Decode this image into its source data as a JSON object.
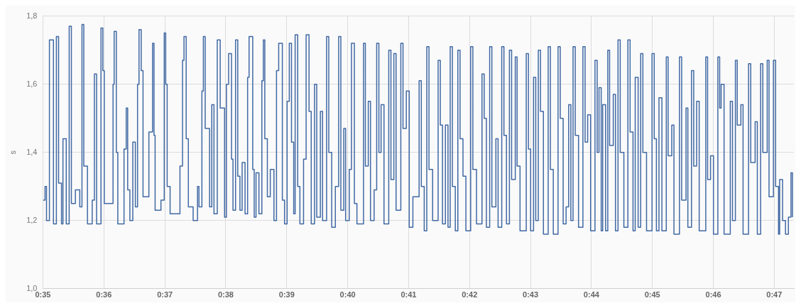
{
  "chart_data": {
    "type": "step",
    "ylabel": "s",
    "color": "#4169a4",
    "xlim": [
      0.58333,
      0.7887
    ],
    "xticks": [
      {
        "value": 0.58333,
        "label": "0:35"
      },
      {
        "value": 0.6,
        "label": "0:36"
      },
      {
        "value": 0.61667,
        "label": "0:37"
      },
      {
        "value": 0.63333,
        "label": "0:38"
      },
      {
        "value": 0.65,
        "label": "0:39"
      },
      {
        "value": 0.66667,
        "label": "0:40"
      },
      {
        "value": 0.68333,
        "label": "0:41"
      },
      {
        "value": 0.7,
        "label": "0:42"
      },
      {
        "value": 0.71667,
        "label": "0:43"
      },
      {
        "value": 0.73333,
        "label": "0:44"
      },
      {
        "value": 0.75,
        "label": "0:45"
      },
      {
        "value": 0.76667,
        "label": "0:46"
      },
      {
        "value": 0.78333,
        "label": "0:47"
      }
    ],
    "ylim": [
      1.0,
      1.8
    ],
    "yticks": [
      {
        "value": 1.0,
        "label": "1,0"
      },
      {
        "value": 1.2,
        "label": "1,2"
      },
      {
        "value": 1.4,
        "label": "1,4"
      },
      {
        "value": 1.6,
        "label": "1,6"
      },
      {
        "value": 1.8,
        "label": "1,8"
      }
    ],
    "grid": true,
    "legend": false,
    "marker": "none",
    "x": [
      0.5834,
      0.5839,
      0.5843,
      0.5851,
      0.5862,
      0.587,
      0.5876,
      0.5884,
      0.5888,
      0.5897,
      0.5905,
      0.5911,
      0.5922,
      0.5934,
      0.594,
      0.5945,
      0.5955,
      0.5968,
      0.5974,
      0.598,
      0.5992,
      0.5997,
      0.6001,
      0.6025,
      0.6028,
      0.6034,
      0.6038,
      0.6055,
      0.6061,
      0.6065,
      0.6071,
      0.6079,
      0.6086,
      0.6092,
      0.6096,
      0.6102,
      0.6107,
      0.6123,
      0.6133,
      0.6137,
      0.614,
      0.6156,
      0.6165,
      0.6169,
      0.6173,
      0.6181,
      0.6208,
      0.6215,
      0.6219,
      0.6225,
      0.6231,
      0.6244,
      0.6256,
      0.626,
      0.6268,
      0.6272,
      0.6277,
      0.6289,
      0.6295,
      0.6301,
      0.631,
      0.6318,
      0.633,
      0.6335,
      0.6341,
      0.6349,
      0.6353,
      0.636,
      0.6366,
      0.6372,
      0.6378,
      0.6386,
      0.6393,
      0.6397,
      0.6407,
      0.6411,
      0.6416,
      0.6424,
      0.6432,
      0.6436,
      0.644,
      0.6447,
      0.6455,
      0.6465,
      0.6472,
      0.6478,
      0.6488,
      0.6494,
      0.6501,
      0.6507,
      0.6513,
      0.6519,
      0.6523,
      0.653,
      0.6536,
      0.6546,
      0.6553,
      0.6561,
      0.6567,
      0.6576,
      0.6582,
      0.6592,
      0.6598,
      0.6609,
      0.6615,
      0.6623,
      0.6633,
      0.6642,
      0.6648,
      0.6656,
      0.6661,
      0.6671,
      0.6677,
      0.6685,
      0.6692,
      0.671,
      0.6715,
      0.6723,
      0.6729,
      0.6739,
      0.6746,
      0.6752,
      0.6758,
      0.6766,
      0.6779,
      0.6785,
      0.6793,
      0.6799,
      0.6812,
      0.6818,
      0.6827,
      0.6835,
      0.6845,
      0.6862,
      0.6868,
      0.6876,
      0.6883,
      0.6889,
      0.6899,
      0.6914,
      0.692,
      0.6926,
      0.6934,
      0.6941,
      0.6947,
      0.6953,
      0.6961,
      0.6968,
      0.6974,
      0.6982,
      0.699,
      0.7003,
      0.7009,
      0.7019,
      0.7034,
      0.704,
      0.7046,
      0.7055,
      0.7061,
      0.7072,
      0.7078,
      0.7088,
      0.7094,
      0.7101,
      0.7109,
      0.7115,
      0.7125,
      0.713,
      0.7138,
      0.7155,
      0.7161,
      0.7167,
      0.7175,
      0.7181,
      0.7188,
      0.7194,
      0.7202,
      0.7215,
      0.7221,
      0.7229,
      0.7242,
      0.7248,
      0.7256,
      0.7264,
      0.7271,
      0.7277,
      0.7283,
      0.7289,
      0.7298,
      0.731,
      0.7316,
      0.7323,
      0.7331,
      0.7343,
      0.7349,
      0.7354,
      0.736,
      0.7364,
      0.7372,
      0.7378,
      0.7383,
      0.7393,
      0.7399,
      0.7406,
      0.7412,
      0.7422,
      0.7433,
      0.7439,
      0.7447,
      0.7453,
      0.7461,
      0.7468,
      0.7474,
      0.7484,
      0.7499,
      0.7505,
      0.7511,
      0.7518,
      0.7526,
      0.7538,
      0.7543,
      0.7553,
      0.7559,
      0.7574,
      0.758,
      0.7592,
      0.7597,
      0.7607,
      0.7613,
      0.7621,
      0.7628,
      0.7646,
      0.7651,
      0.7659,
      0.7667,
      0.7679,
      0.7684,
      0.7688,
      0.7696,
      0.7713,
      0.7719,
      0.7727,
      0.7732,
      0.7742,
      0.7748,
      0.7763,
      0.7769,
      0.7781,
      0.7787,
      0.7796,
      0.7802,
      0.7814,
      0.7819,
      0.7831,
      0.7837,
      0.7845,
      0.7848,
      0.7856,
      0.7864,
      0.7872,
      0.7879,
      0.7883
    ],
    "values": [
      1.26,
      1.3,
      1.2,
      1.73,
      1.19,
      1.74,
      1.31,
      1.19,
      1.44,
      1.19,
      1.77,
      1.25,
      1.29,
      1.24,
      1.775,
      1.36,
      1.19,
      1.26,
      1.63,
      1.19,
      1.765,
      1.64,
      1.25,
      1.6,
      1.755,
      1.4,
      1.19,
      1.41,
      1.53,
      1.29,
      1.2,
      1.43,
      1.24,
      1.6,
      1.76,
      1.64,
      1.27,
      1.46,
      1.72,
      1.45,
      1.23,
      1.26,
      1.75,
      1.6,
      1.3,
      1.22,
      1.36,
      1.67,
      1.74,
      1.44,
      1.24,
      1.2,
      1.3,
      1.24,
      1.58,
      1.74,
      1.47,
      1.24,
      1.54,
      1.22,
      1.73,
      1.53,
      1.21,
      1.6,
      1.69,
      1.38,
      1.23,
      1.73,
      1.33,
      1.23,
      1.37,
      1.22,
      1.62,
      1.74,
      1.35,
      1.21,
      1.34,
      1.22,
      1.61,
      1.73,
      1.44,
      1.27,
      1.35,
      1.2,
      1.64,
      1.72,
      1.26,
      1.19,
      1.55,
      1.72,
      1.43,
      1.22,
      1.745,
      1.3,
      1.19,
      1.38,
      1.745,
      1.52,
      1.19,
      1.6,
      1.21,
      1.52,
      1.2,
      1.74,
      1.4,
      1.18,
      1.3,
      1.74,
      1.23,
      1.47,
      1.2,
      1.35,
      1.72,
      1.25,
      1.19,
      1.72,
      1.36,
      1.55,
      1.2,
      1.29,
      1.72,
      1.4,
      1.54,
      1.19,
      1.7,
      1.32,
      1.69,
      1.23,
      1.72,
      1.47,
      1.58,
      1.18,
      1.27,
      1.61,
      1.3,
      1.17,
      1.71,
      1.35,
      1.2,
      1.67,
      1.48,
      1.19,
      1.48,
      1.18,
      1.71,
      1.3,
      1.17,
      1.7,
      1.44,
      1.33,
      1.17,
      1.71,
      1.35,
      1.19,
      1.63,
      1.5,
      1.18,
      1.71,
      1.24,
      1.44,
      1.18,
      1.71,
      1.45,
      1.19,
      1.7,
      1.32,
      1.68,
      1.36,
      1.17,
      1.69,
      1.41,
      1.17,
      1.62,
      1.2,
      1.7,
      1.52,
      1.16,
      1.71,
      1.35,
      1.16,
      1.71,
      1.5,
      1.19,
      1.24,
      1.54,
      1.2,
      1.71,
      1.45,
      1.18,
      1.71,
      1.43,
      1.51,
      1.17,
      1.67,
      1.4,
      1.59,
      1.17,
      1.54,
      1.17,
      1.7,
      1.42,
      1.57,
      1.17,
      1.73,
      1.4,
      1.18,
      1.73,
      1.46,
      1.17,
      1.62,
      1.18,
      1.69,
      1.4,
      1.17,
      1.69,
      1.44,
      1.17,
      1.56,
      1.17,
      1.68,
      1.39,
      1.48,
      1.16,
      1.68,
      1.26,
      1.53,
      1.18,
      1.64,
      1.36,
      1.55,
      1.17,
      1.68,
      1.32,
      1.39,
      1.16,
      1.68,
      1.53,
      1.6,
      1.16,
      1.55,
      1.2,
      1.67,
      1.48,
      1.54,
      1.16,
      1.66,
      1.37,
      1.49,
      1.16,
      1.66,
      1.4,
      1.67,
      1.27,
      1.67,
      1.3,
      1.16,
      1.32,
      1.2,
      1.16,
      1.21,
      1.34,
      1.21
    ]
  }
}
